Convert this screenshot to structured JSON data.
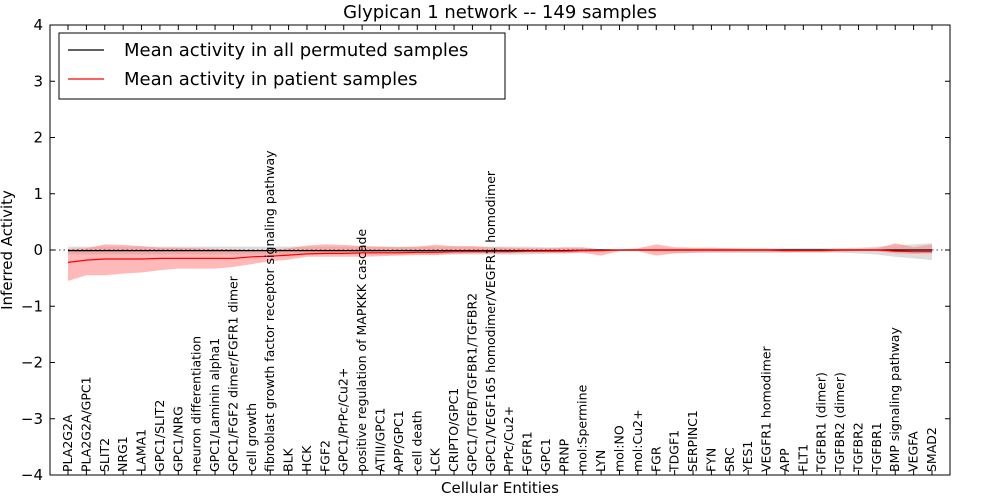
{
  "chart_data": {
    "type": "line",
    "title": "Glypican 1 network -- 149 samples",
    "xlabel": "Cellular Entities",
    "ylabel": "Inferred Activity",
    "ylim": [
      -4,
      4
    ],
    "yticks": [
      -4,
      -3,
      -2,
      -1,
      0,
      1,
      2,
      3,
      4
    ],
    "ytick_labels": [
      "−4",
      "−3",
      "−2",
      "−1",
      "0",
      "1",
      "2",
      "3",
      "4"
    ],
    "grid": false,
    "legend": "top-left",
    "categories": [
      "PLA2G2A",
      "PLA2G2A/GPC1",
      "SLIT2",
      "NRG1",
      "LAMA1",
      "GPC1/SLIT2",
      "GPC1/NRG",
      "neuron differentiation",
      "GPC1/Laminin alpha1",
      "GPC1/FGF2 dimer/FGFR1 dimer",
      "cell growth",
      "fibroblast growth factor receptor signaling pathway",
      "BLK",
      "HCK",
      "FGF2",
      "GPC1/PrPc/Cu2+",
      "positive regulation of MAPKKK cascade",
      "ATIII/GPC1",
      "APP/GPC1",
      "cell death",
      "LCK",
      "CRIPTO/GPC1",
      "GPC1/TGFB/TGFBR1/TGFBR2",
      "GPC1/VEGF165 homodimer/VEGFR1 homodimer",
      "PrPc/Cu2+",
      "FGFR1",
      "GPC1",
      "PRNP",
      "mol:Spermine",
      "LYN",
      "mol:NO",
      "mol:Cu2+",
      "FGR",
      "TDGF1",
      "SERPINC1",
      "FYN",
      "SRC",
      "YES1",
      "VEGFR1 homodimer",
      "APP",
      "FLT1",
      "TGFBR1 (dimer)",
      "TGFBR2 (dimer)",
      "TGFBR2",
      "TGFBR1",
      "BMP signaling pathway",
      "VEGFA",
      "SMAD2"
    ],
    "series": [
      {
        "name": "Mean activity in all permuted samples",
        "color": "#000000",
        "values": [
          -0.01,
          -0.01,
          -0.01,
          -0.01,
          -0.01,
          -0.01,
          -0.01,
          -0.01,
          -0.01,
          -0.01,
          -0.01,
          -0.01,
          -0.01,
          -0.01,
          -0.01,
          -0.01,
          -0.01,
          -0.01,
          -0.01,
          -0.01,
          -0.01,
          -0.01,
          -0.01,
          -0.01,
          -0.01,
          -0.01,
          -0.01,
          -0.01,
          -0.005,
          0,
          0,
          0,
          0,
          0,
          0,
          0,
          0,
          0,
          0,
          0,
          0,
          0,
          0,
          0,
          0,
          0,
          0,
          0
        ],
        "band_lower": [
          -0.08,
          -0.08,
          -0.08,
          -0.08,
          -0.08,
          -0.08,
          -0.08,
          -0.08,
          -0.08,
          -0.08,
          -0.08,
          -0.08,
          -0.08,
          -0.08,
          -0.08,
          -0.08,
          -0.08,
          -0.08,
          -0.08,
          -0.08,
          -0.08,
          -0.08,
          -0.08,
          -0.08,
          -0.08,
          -0.08,
          -0.07,
          -0.06,
          -0.04,
          -0.02,
          -0.01,
          -0.01,
          -0.03,
          -0.05,
          -0.05,
          -0.05,
          -0.05,
          -0.05,
          -0.05,
          -0.05,
          -0.05,
          -0.05,
          -0.05,
          -0.06,
          -0.08,
          -0.12,
          -0.15,
          -0.18
        ],
        "band_upper": [
          0.06,
          0.06,
          0.06,
          0.06,
          0.06,
          0.06,
          0.06,
          0.06,
          0.06,
          0.06,
          0.06,
          0.06,
          0.06,
          0.06,
          0.06,
          0.06,
          0.06,
          0.06,
          0.06,
          0.06,
          0.06,
          0.06,
          0.06,
          0.06,
          0.06,
          0.06,
          0.05,
          0.04,
          0.03,
          0.02,
          0.01,
          0.01,
          0.02,
          0.03,
          0.03,
          0.03,
          0.03,
          0.03,
          0.03,
          0.03,
          0.03,
          0.03,
          0.03,
          0.04,
          0.06,
          0.08,
          0.1,
          0.12
        ]
      },
      {
        "name": "Mean activity in patient samples",
        "color": "#ff0000",
        "band_color": "#ff8080",
        "values": [
          -0.22,
          -0.18,
          -0.16,
          -0.16,
          -0.16,
          -0.15,
          -0.15,
          -0.15,
          -0.15,
          -0.15,
          -0.12,
          -0.11,
          -0.09,
          -0.07,
          -0.06,
          -0.06,
          -0.05,
          -0.05,
          -0.05,
          -0.04,
          -0.04,
          -0.03,
          -0.03,
          -0.03,
          -0.03,
          -0.02,
          -0.02,
          -0.02,
          -0.01,
          -0.01,
          0,
          0,
          0,
          0,
          0,
          0,
          0,
          0,
          0,
          -0.01,
          -0.01,
          -0.01,
          0,
          0,
          0,
          -0.02,
          -0.03,
          -0.03
        ],
        "band_lower": [
          -0.55,
          -0.45,
          -0.45,
          -0.42,
          -0.4,
          -0.36,
          -0.33,
          -0.33,
          -0.33,
          -0.3,
          -0.25,
          -0.2,
          -0.17,
          -0.12,
          -0.12,
          -0.12,
          -0.12,
          -0.11,
          -0.1,
          -0.09,
          -0.09,
          -0.07,
          -0.06,
          -0.06,
          -0.06,
          -0.05,
          -0.05,
          -0.06,
          -0.05,
          -0.1,
          -0.02,
          -0.02,
          -0.1,
          -0.06,
          -0.05,
          -0.04,
          -0.04,
          -0.04,
          -0.04,
          -0.04,
          -0.03,
          -0.03,
          -0.03,
          -0.02,
          -0.02,
          -0.06,
          -0.07,
          -0.06
        ],
        "band_upper": [
          0.02,
          0.03,
          0.1,
          0.09,
          0.07,
          0.04,
          0.04,
          0.03,
          0.02,
          0.01,
          0,
          0,
          0.03,
          0.08,
          0.1,
          0.09,
          0.07,
          0.06,
          0.05,
          0.06,
          0.09,
          0.07,
          0.07,
          0.05,
          0.04,
          0.03,
          0.03,
          0.05,
          0.05,
          0.01,
          0,
          0.03,
          0.1,
          0.05,
          0.04,
          0.04,
          0.03,
          0.02,
          0.02,
          0.02,
          0.02,
          0.02,
          0.02,
          0.02,
          0.03,
          0.12,
          0.05,
          0.1
        ]
      }
    ]
  }
}
